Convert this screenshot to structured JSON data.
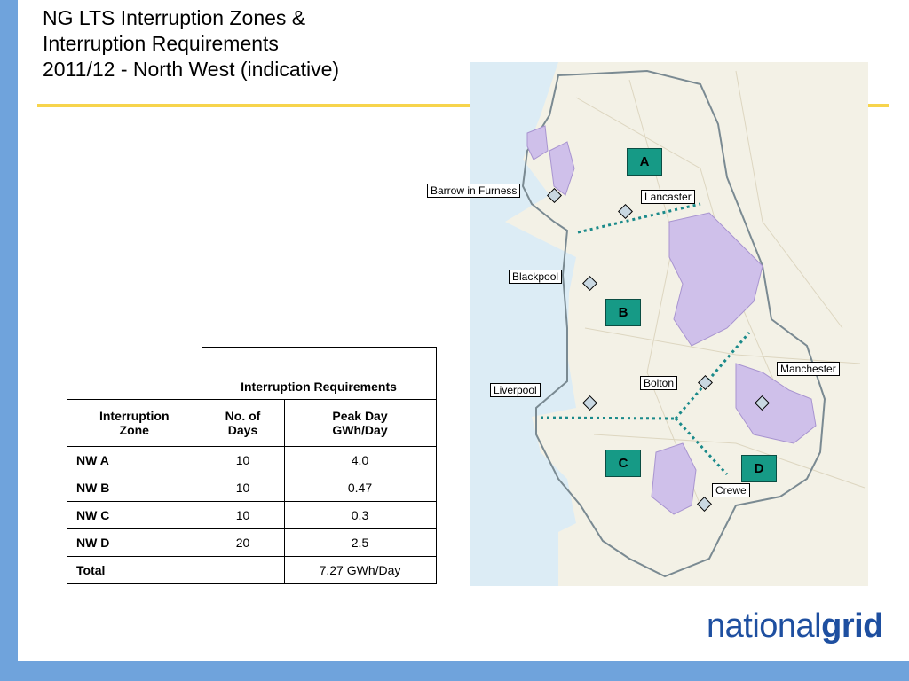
{
  "title": {
    "line1": "NG LTS Interruption Zones &",
    "line2": "Interruption Requirements",
    "line3": "2011/12 - North West (indicative)"
  },
  "table": {
    "group_header": "Interruption Requirements",
    "col1_line1": "Interruption",
    "col1_line2": "Zone",
    "col2_line1": "No. of",
    "col2_line2": "Days",
    "col3_line1": "Peak Day",
    "col3_line2": "GWh/Day",
    "rows": [
      {
        "zone": "NW A",
        "days": "10",
        "peak": "4.0"
      },
      {
        "zone": "NW B",
        "days": "10",
        "peak": "0.47"
      },
      {
        "zone": "NW C",
        "days": "10",
        "peak": "0.3"
      },
      {
        "zone": "NW D",
        "days": "20",
        "peak": "2.5"
      }
    ],
    "total_label": "Total",
    "total_value": "7.27 GWh/Day"
  },
  "map": {
    "places": {
      "barrow": "Barrow in Furness",
      "lancaster": "Lancaster",
      "blackpool": "Blackpool",
      "manchester": "Manchester",
      "bolton": "Bolton",
      "liverpool": "Liverpool",
      "crewe": "Crewe"
    },
    "zones": {
      "a": "A",
      "b": "B",
      "c": "C",
      "d": "D"
    },
    "colors": {
      "zone_box": "#169a86",
      "boundary_line": "#1a8a8a",
      "purple_area": "#cfc0ea",
      "land": "#f3f1e6",
      "sea": "#dcecf5"
    }
  },
  "logo": {
    "part1": "national",
    "part2": "grid"
  },
  "theme": {
    "side_bar": "#6fa3dc",
    "rule": "#f7d44c",
    "logo_blue": "#1e4fa0"
  }
}
